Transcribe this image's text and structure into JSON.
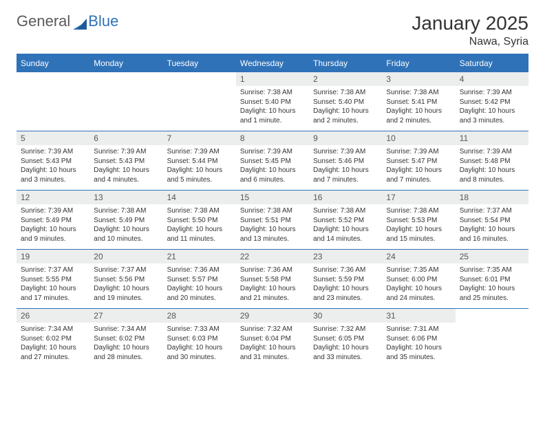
{
  "brand": {
    "name_left": "General",
    "name_right": "Blue"
  },
  "title": {
    "month": "January 2025",
    "location": "Nawa, Syria"
  },
  "styling": {
    "header_bg": "#2f72b8",
    "header_text": "#ffffff",
    "daynum_bg": "#eceded",
    "border_color": "#2f72b8",
    "body_text": "#333333",
    "title_fontsize": 28,
    "location_fontsize": 16,
    "dayheader_fontsize": 12,
    "cell_fontsize": 10
  },
  "weekdays": [
    "Sunday",
    "Monday",
    "Tuesday",
    "Wednesday",
    "Thursday",
    "Friday",
    "Saturday"
  ],
  "weeks": [
    [
      null,
      null,
      null,
      {
        "n": "1",
        "sr": "Sunrise: 7:38 AM",
        "ss": "Sunset: 5:40 PM",
        "dl": "Daylight: 10 hours and 1 minute."
      },
      {
        "n": "2",
        "sr": "Sunrise: 7:38 AM",
        "ss": "Sunset: 5:40 PM",
        "dl": "Daylight: 10 hours and 2 minutes."
      },
      {
        "n": "3",
        "sr": "Sunrise: 7:38 AM",
        "ss": "Sunset: 5:41 PM",
        "dl": "Daylight: 10 hours and 2 minutes."
      },
      {
        "n": "4",
        "sr": "Sunrise: 7:39 AM",
        "ss": "Sunset: 5:42 PM",
        "dl": "Daylight: 10 hours and 3 minutes."
      }
    ],
    [
      {
        "n": "5",
        "sr": "Sunrise: 7:39 AM",
        "ss": "Sunset: 5:43 PM",
        "dl": "Daylight: 10 hours and 3 minutes."
      },
      {
        "n": "6",
        "sr": "Sunrise: 7:39 AM",
        "ss": "Sunset: 5:43 PM",
        "dl": "Daylight: 10 hours and 4 minutes."
      },
      {
        "n": "7",
        "sr": "Sunrise: 7:39 AM",
        "ss": "Sunset: 5:44 PM",
        "dl": "Daylight: 10 hours and 5 minutes."
      },
      {
        "n": "8",
        "sr": "Sunrise: 7:39 AM",
        "ss": "Sunset: 5:45 PM",
        "dl": "Daylight: 10 hours and 6 minutes."
      },
      {
        "n": "9",
        "sr": "Sunrise: 7:39 AM",
        "ss": "Sunset: 5:46 PM",
        "dl": "Daylight: 10 hours and 7 minutes."
      },
      {
        "n": "10",
        "sr": "Sunrise: 7:39 AM",
        "ss": "Sunset: 5:47 PM",
        "dl": "Daylight: 10 hours and 7 minutes."
      },
      {
        "n": "11",
        "sr": "Sunrise: 7:39 AM",
        "ss": "Sunset: 5:48 PM",
        "dl": "Daylight: 10 hours and 8 minutes."
      }
    ],
    [
      {
        "n": "12",
        "sr": "Sunrise: 7:39 AM",
        "ss": "Sunset: 5:49 PM",
        "dl": "Daylight: 10 hours and 9 minutes."
      },
      {
        "n": "13",
        "sr": "Sunrise: 7:38 AM",
        "ss": "Sunset: 5:49 PM",
        "dl": "Daylight: 10 hours and 10 minutes."
      },
      {
        "n": "14",
        "sr": "Sunrise: 7:38 AM",
        "ss": "Sunset: 5:50 PM",
        "dl": "Daylight: 10 hours and 11 minutes."
      },
      {
        "n": "15",
        "sr": "Sunrise: 7:38 AM",
        "ss": "Sunset: 5:51 PM",
        "dl": "Daylight: 10 hours and 13 minutes."
      },
      {
        "n": "16",
        "sr": "Sunrise: 7:38 AM",
        "ss": "Sunset: 5:52 PM",
        "dl": "Daylight: 10 hours and 14 minutes."
      },
      {
        "n": "17",
        "sr": "Sunrise: 7:38 AM",
        "ss": "Sunset: 5:53 PM",
        "dl": "Daylight: 10 hours and 15 minutes."
      },
      {
        "n": "18",
        "sr": "Sunrise: 7:37 AM",
        "ss": "Sunset: 5:54 PM",
        "dl": "Daylight: 10 hours and 16 minutes."
      }
    ],
    [
      {
        "n": "19",
        "sr": "Sunrise: 7:37 AM",
        "ss": "Sunset: 5:55 PM",
        "dl": "Daylight: 10 hours and 17 minutes."
      },
      {
        "n": "20",
        "sr": "Sunrise: 7:37 AM",
        "ss": "Sunset: 5:56 PM",
        "dl": "Daylight: 10 hours and 19 minutes."
      },
      {
        "n": "21",
        "sr": "Sunrise: 7:36 AM",
        "ss": "Sunset: 5:57 PM",
        "dl": "Daylight: 10 hours and 20 minutes."
      },
      {
        "n": "22",
        "sr": "Sunrise: 7:36 AM",
        "ss": "Sunset: 5:58 PM",
        "dl": "Daylight: 10 hours and 21 minutes."
      },
      {
        "n": "23",
        "sr": "Sunrise: 7:36 AM",
        "ss": "Sunset: 5:59 PM",
        "dl": "Daylight: 10 hours and 23 minutes."
      },
      {
        "n": "24",
        "sr": "Sunrise: 7:35 AM",
        "ss": "Sunset: 6:00 PM",
        "dl": "Daylight: 10 hours and 24 minutes."
      },
      {
        "n": "25",
        "sr": "Sunrise: 7:35 AM",
        "ss": "Sunset: 6:01 PM",
        "dl": "Daylight: 10 hours and 25 minutes."
      }
    ],
    [
      {
        "n": "26",
        "sr": "Sunrise: 7:34 AM",
        "ss": "Sunset: 6:02 PM",
        "dl": "Daylight: 10 hours and 27 minutes."
      },
      {
        "n": "27",
        "sr": "Sunrise: 7:34 AM",
        "ss": "Sunset: 6:02 PM",
        "dl": "Daylight: 10 hours and 28 minutes."
      },
      {
        "n": "28",
        "sr": "Sunrise: 7:33 AM",
        "ss": "Sunset: 6:03 PM",
        "dl": "Daylight: 10 hours and 30 minutes."
      },
      {
        "n": "29",
        "sr": "Sunrise: 7:32 AM",
        "ss": "Sunset: 6:04 PM",
        "dl": "Daylight: 10 hours and 31 minutes."
      },
      {
        "n": "30",
        "sr": "Sunrise: 7:32 AM",
        "ss": "Sunset: 6:05 PM",
        "dl": "Daylight: 10 hours and 33 minutes."
      },
      {
        "n": "31",
        "sr": "Sunrise: 7:31 AM",
        "ss": "Sunset: 6:06 PM",
        "dl": "Daylight: 10 hours and 35 minutes."
      },
      null
    ]
  ]
}
